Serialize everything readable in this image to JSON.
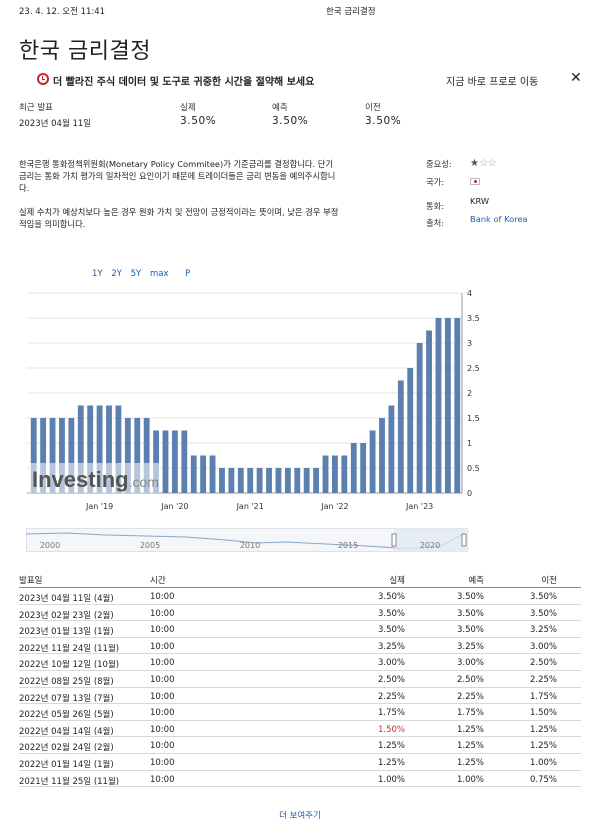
{
  "print_header": {
    "date": "23. 4. 12. 오전 11:41",
    "title": "한국 금리결정"
  },
  "page_title": "한국 금리결정",
  "promo": {
    "text": "더 빨라진 주식 데이터 및 도구로 귀중한 시간을 절약해 보세요",
    "link": "지금 바로 프로로 이동",
    "close": "✕"
  },
  "summary": {
    "recent_label": "최근 발표",
    "recent_date": "2023년 04월 11일",
    "actual_label": "실제",
    "actual": "3.50%",
    "forecast_label": "예측",
    "forecast": "3.50%",
    "previous_label": "이전",
    "previous": "3.50%"
  },
  "description": [
    "한국은행 통화정책위원회(Monetary Policy Commitee)가 기준금리를 결정합니다. 단기금리는 통화 가치 평가의 일차적인 요인이기 때문에 트레이더들은 금리 변동을 예의주시합니다.",
    "실제 수치가 예상치보다 높은 경우 원화 가치 및 전망이 긍정적이라는 뜻이며, 낮은 경우 부정적임을 의미합니다."
  ],
  "meta": {
    "importance_label": "중요성:",
    "importance_stars": 1,
    "country_label": "국가:",
    "currency_label": "통화:",
    "currency": "KRW",
    "source_label": "출처:",
    "source": "Bank of Korea"
  },
  "ranges": [
    "1Y",
    "2Y",
    "5Y",
    "max",
    "P"
  ],
  "colors": {
    "bar": "#5b7fae",
    "link": "#1a5fae",
    "negative": "#d32f2f"
  },
  "chart_data": {
    "type": "bar",
    "title": "",
    "xlabel": "",
    "ylabel": "",
    "ylim": [
      0,
      4
    ],
    "yticks": [
      "0",
      "0.5",
      "1",
      "1.5",
      "2",
      "2.5",
      "3",
      "3.5",
      "4"
    ],
    "xticks": [
      "Jan '19",
      "Jan '20",
      "Jan '21",
      "Jan '22",
      "Jan '23"
    ],
    "watermark": "Investing.com",
    "values": [
      1.5,
      1.5,
      1.5,
      1.5,
      1.5,
      1.75,
      1.75,
      1.75,
      1.75,
      1.75,
      1.5,
      1.5,
      1.5,
      1.25,
      1.25,
      1.25,
      1.25,
      0.75,
      0.75,
      0.75,
      0.5,
      0.5,
      0.5,
      0.5,
      0.5,
      0.5,
      0.5,
      0.5,
      0.5,
      0.5,
      0.5,
      0.75,
      0.75,
      0.75,
      1.0,
      1.0,
      1.25,
      1.5,
      1.75,
      2.25,
      2.5,
      3.0,
      3.25,
      3.5,
      3.5,
      3.5
    ]
  },
  "navigator": {
    "labels": [
      "2000",
      "2005",
      "2010",
      "2015",
      "2020"
    ]
  },
  "table": {
    "headers": {
      "date": "발표일",
      "time": "시간",
      "actual": "실제",
      "forecast": "예측",
      "previous": "이전"
    },
    "rows": [
      {
        "date": "2023년 04월 11일 (4월)",
        "time": "10:00",
        "actual": "3.50%",
        "forecast": "3.50%",
        "previous": "3.50%",
        "neg": false
      },
      {
        "date": "2023년 02월 23일 (2월)",
        "time": "10:00",
        "actual": "3.50%",
        "forecast": "3.50%",
        "previous": "3.50%",
        "neg": false
      },
      {
        "date": "2023년 01월 13일 (1월)",
        "time": "10:00",
        "actual": "3.50%",
        "forecast": "3.50%",
        "previous": "3.25%",
        "neg": false
      },
      {
        "date": "2022년 11월 24일 (11월)",
        "time": "10:00",
        "actual": "3.25%",
        "forecast": "3.25%",
        "previous": "3.00%",
        "neg": false
      },
      {
        "date": "2022년 10월 12일 (10월)",
        "time": "10:00",
        "actual": "3.00%",
        "forecast": "3.00%",
        "previous": "2.50%",
        "neg": false
      },
      {
        "date": "2022년 08월 25일 (8월)",
        "time": "10:00",
        "actual": "2.50%",
        "forecast": "2.50%",
        "previous": "2.25%",
        "neg": false
      },
      {
        "date": "2022년 07월 13일 (7월)",
        "time": "10:00",
        "actual": "2.25%",
        "forecast": "2.25%",
        "previous": "1.75%",
        "neg": false
      },
      {
        "date": "2022년 05월 26일 (5월)",
        "time": "10:00",
        "actual": "1.75%",
        "forecast": "1.75%",
        "previous": "1.50%",
        "neg": false
      },
      {
        "date": "2022년 04월 14일 (4월)",
        "time": "10:00",
        "actual": "1.50%",
        "forecast": "1.25%",
        "previous": "1.25%",
        "neg": true
      },
      {
        "date": "2022년 02월 24일 (2월)",
        "time": "10:00",
        "actual": "1.25%",
        "forecast": "1.25%",
        "previous": "1.25%",
        "neg": false
      },
      {
        "date": "2022년 01월 14일 (1월)",
        "time": "10:00",
        "actual": "1.25%",
        "forecast": "1.25%",
        "previous": "1.00%",
        "neg": false
      },
      {
        "date": "2021년 11월 25일 (11월)",
        "time": "10:00",
        "actual": "1.00%",
        "forecast": "1.00%",
        "previous": "0.75%",
        "neg": false
      }
    ]
  },
  "more_label": "더 보여주기"
}
